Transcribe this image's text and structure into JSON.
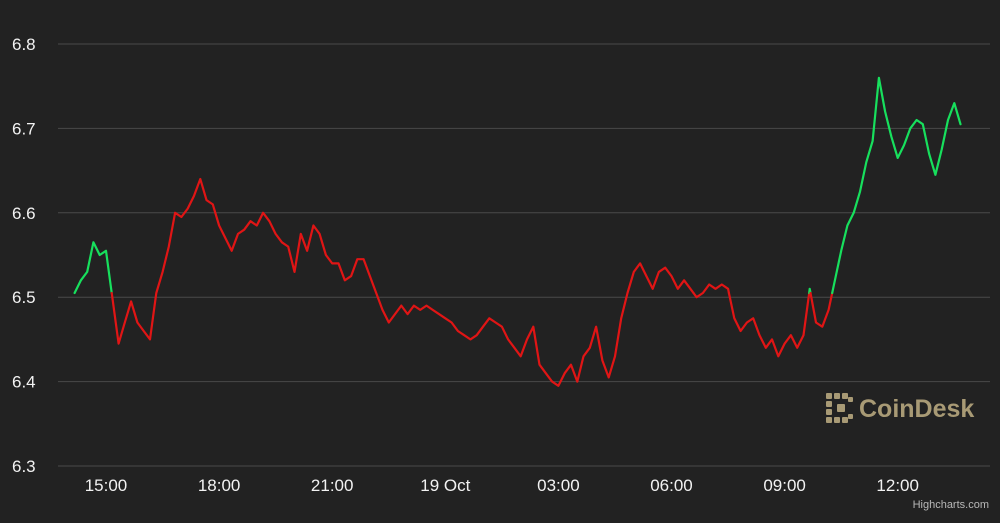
{
  "chart_data": {
    "type": "line",
    "title": "",
    "xlabel": "",
    "ylabel": "",
    "x_range": [
      "18 Oct 14:00",
      "19 Oct 13:40"
    ],
    "ylim": [
      6.3,
      6.8
    ],
    "yticks": [
      "6.3",
      "6.4",
      "6.5",
      "6.6",
      "6.7",
      "6.8"
    ],
    "xticks": [
      {
        "label": "15:00",
        "hours": 15
      },
      {
        "label": "18:00",
        "hours": 18
      },
      {
        "label": "21:00",
        "hours": 21
      },
      {
        "label": "19 Oct",
        "hours": 24
      },
      {
        "label": "03:00",
        "hours": 27
      },
      {
        "label": "06:00",
        "hours": 30
      },
      {
        "label": "09:00",
        "hours": 33
      },
      {
        "label": "12:00",
        "hours": 36
      }
    ],
    "grid": "horizontal",
    "baseline": 6.505,
    "colors": {
      "up": "#17e05d",
      "down": "#e01515",
      "background": "#222222",
      "grid": "#4a4a4a"
    },
    "series": [
      {
        "points": [
          [
            "18 Oct 14:10",
            6.505
          ],
          [
            "18 Oct 14:20",
            6.52
          ],
          [
            "18 Oct 14:30",
            6.53
          ],
          [
            "18 Oct 14:40",
            6.565
          ],
          [
            "18 Oct 14:50",
            6.55
          ],
          [
            "18 Oct 15:00",
            6.555
          ],
          [
            "18 Oct 15:10",
            6.5
          ],
          [
            "18 Oct 15:20",
            6.445
          ],
          [
            "18 Oct 15:30",
            6.47
          ],
          [
            "18 Oct 15:40",
            6.495
          ],
          [
            "18 Oct 15:50",
            6.47
          ],
          [
            "18 Oct 16:00",
            6.46
          ],
          [
            "18 Oct 16:10",
            6.45
          ],
          [
            "18 Oct 16:20",
            6.505
          ],
          [
            "18 Oct 16:30",
            6.53
          ],
          [
            "18 Oct 16:40",
            6.56
          ],
          [
            "18 Oct 16:50",
            6.6
          ],
          [
            "18 Oct 17:00",
            6.595
          ],
          [
            "18 Oct 17:10",
            6.605
          ],
          [
            "18 Oct 17:20",
            6.62
          ],
          [
            "18 Oct 17:30",
            6.64
          ],
          [
            "18 Oct 17:40",
            6.615
          ],
          [
            "18 Oct 17:50",
            6.61
          ],
          [
            "18 Oct 18:00",
            6.585
          ],
          [
            "18 Oct 18:10",
            6.57
          ],
          [
            "18 Oct 18:20",
            6.555
          ],
          [
            "18 Oct 18:30",
            6.575
          ],
          [
            "18 Oct 18:40",
            6.58
          ],
          [
            "18 Oct 18:50",
            6.59
          ],
          [
            "18 Oct 19:00",
            6.585
          ],
          [
            "18 Oct 19:10",
            6.6
          ],
          [
            "18 Oct 19:20",
            6.59
          ],
          [
            "18 Oct 19:30",
            6.575
          ],
          [
            "18 Oct 19:40",
            6.565
          ],
          [
            "18 Oct 19:50",
            6.56
          ],
          [
            "18 Oct 20:00",
            6.53
          ],
          [
            "18 Oct 20:10",
            6.575
          ],
          [
            "18 Oct 20:20",
            6.555
          ],
          [
            "18 Oct 20:30",
            6.585
          ],
          [
            "18 Oct 20:40",
            6.575
          ],
          [
            "18 Oct 20:50",
            6.55
          ],
          [
            "18 Oct 21:00",
            6.54
          ],
          [
            "18 Oct 21:10",
            6.54
          ],
          [
            "18 Oct 21:20",
            6.52
          ],
          [
            "18 Oct 21:30",
            6.525
          ],
          [
            "18 Oct 21:40",
            6.545
          ],
          [
            "18 Oct 21:50",
            6.545
          ],
          [
            "18 Oct 22:00",
            6.525
          ],
          [
            "18 Oct 22:10",
            6.505
          ],
          [
            "18 Oct 22:20",
            6.485
          ],
          [
            "18 Oct 22:30",
            6.47
          ],
          [
            "18 Oct 22:40",
            6.48
          ],
          [
            "18 Oct 22:50",
            6.49
          ],
          [
            "18 Oct 23:00",
            6.48
          ],
          [
            "18 Oct 23:10",
            6.49
          ],
          [
            "18 Oct 23:20",
            6.485
          ],
          [
            "18 Oct 23:30",
            6.49
          ],
          [
            "18 Oct 23:40",
            6.485
          ],
          [
            "18 Oct 23:50",
            6.48
          ],
          [
            "19 Oct 00:00",
            6.475
          ],
          [
            "19 Oct 00:10",
            6.47
          ],
          [
            "19 Oct 00:20",
            6.46
          ],
          [
            "19 Oct 00:30",
            6.455
          ],
          [
            "19 Oct 00:40",
            6.45
          ],
          [
            "19 Oct 00:50",
            6.455
          ],
          [
            "19 Oct 01:00",
            6.465
          ],
          [
            "19 Oct 01:10",
            6.475
          ],
          [
            "19 Oct 01:20",
            6.47
          ],
          [
            "19 Oct 01:30",
            6.465
          ],
          [
            "19 Oct 01:40",
            6.45
          ],
          [
            "19 Oct 01:50",
            6.44
          ],
          [
            "19 Oct 02:00",
            6.43
          ],
          [
            "19 Oct 02:10",
            6.45
          ],
          [
            "19 Oct 02:20",
            6.465
          ],
          [
            "19 Oct 02:30",
            6.42
          ],
          [
            "19 Oct 02:40",
            6.41
          ],
          [
            "19 Oct 02:50",
            6.4
          ],
          [
            "19 Oct 03:00",
            6.395
          ],
          [
            "19 Oct 03:10",
            6.41
          ],
          [
            "19 Oct 03:20",
            6.42
          ],
          [
            "19 Oct 03:30",
            6.4
          ],
          [
            "19 Oct 03:40",
            6.43
          ],
          [
            "19 Oct 03:50",
            6.44
          ],
          [
            "19 Oct 04:00",
            6.465
          ],
          [
            "19 Oct 04:10",
            6.425
          ],
          [
            "19 Oct 04:20",
            6.405
          ],
          [
            "19 Oct 04:30",
            6.43
          ],
          [
            "19 Oct 04:40",
            6.475
          ],
          [
            "19 Oct 04:50",
            6.505
          ],
          [
            "19 Oct 05:00",
            6.53
          ],
          [
            "19 Oct 05:10",
            6.54
          ],
          [
            "19 Oct 05:20",
            6.525
          ],
          [
            "19 Oct 05:30",
            6.51
          ],
          [
            "19 Oct 05:40",
            6.53
          ],
          [
            "19 Oct 05:50",
            6.535
          ],
          [
            "19 Oct 06:00",
            6.525
          ],
          [
            "19 Oct 06:10",
            6.51
          ],
          [
            "19 Oct 06:20",
            6.52
          ],
          [
            "19 Oct 06:30",
            6.51
          ],
          [
            "19 Oct 06:40",
            6.5
          ],
          [
            "19 Oct 06:50",
            6.505
          ],
          [
            "19 Oct 07:00",
            6.515
          ],
          [
            "19 Oct 07:10",
            6.51
          ],
          [
            "19 Oct 07:20",
            6.515
          ],
          [
            "19 Oct 07:30",
            6.51
          ],
          [
            "19 Oct 07:40",
            6.475
          ],
          [
            "19 Oct 07:50",
            6.46
          ],
          [
            "19 Oct 08:00",
            6.47
          ],
          [
            "19 Oct 08:10",
            6.475
          ],
          [
            "19 Oct 08:20",
            6.455
          ],
          [
            "19 Oct 08:30",
            6.44
          ],
          [
            "19 Oct 08:40",
            6.45
          ],
          [
            "19 Oct 08:50",
            6.43
          ],
          [
            "19 Oct 09:00",
            6.445
          ],
          [
            "19 Oct 09:10",
            6.455
          ],
          [
            "19 Oct 09:20",
            6.44
          ],
          [
            "19 Oct 09:30",
            6.455
          ],
          [
            "19 Oct 09:40",
            6.51
          ],
          [
            "19 Oct 09:50",
            6.47
          ],
          [
            "19 Oct 10:00",
            6.465
          ],
          [
            "19 Oct 10:10",
            6.485
          ],
          [
            "19 Oct 10:20",
            6.52
          ],
          [
            "19 Oct 10:30",
            6.555
          ],
          [
            "19 Oct 10:40",
            6.585
          ],
          [
            "19 Oct 10:50",
            6.6
          ],
          [
            "19 Oct 11:00",
            6.625
          ],
          [
            "19 Oct 11:10",
            6.66
          ],
          [
            "19 Oct 11:20",
            6.685
          ],
          [
            "19 Oct 11:30",
            6.76
          ],
          [
            "19 Oct 11:40",
            6.72
          ],
          [
            "19 Oct 11:50",
            6.69
          ],
          [
            "19 Oct 12:00",
            6.665
          ],
          [
            "19 Oct 12:10",
            6.68
          ],
          [
            "19 Oct 12:20",
            6.7
          ],
          [
            "19 Oct 12:30",
            6.71
          ],
          [
            "19 Oct 12:40",
            6.705
          ],
          [
            "19 Oct 12:50",
            6.67
          ],
          [
            "19 Oct 13:00",
            6.645
          ],
          [
            "19 Oct 13:10",
            6.675
          ],
          [
            "19 Oct 13:20",
            6.71
          ],
          [
            "19 Oct 13:30",
            6.73
          ],
          [
            "19 Oct 13:40",
            6.705
          ]
        ]
      }
    ]
  },
  "watermark": {
    "text": "CoinDesk",
    "color": "#a89a75"
  },
  "credits": "Highcharts.com"
}
